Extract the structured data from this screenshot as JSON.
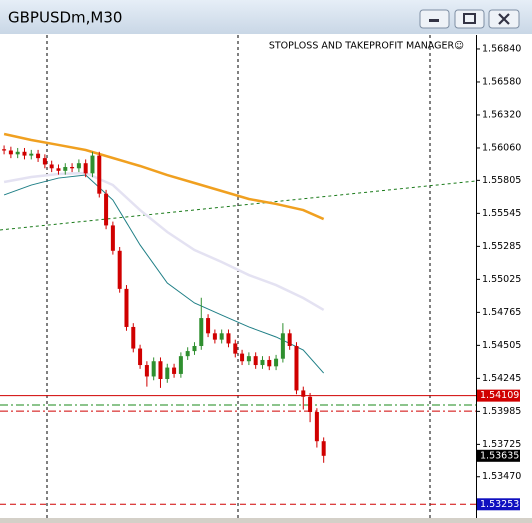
{
  "window": {
    "title": "GBPUSDm,M30"
  },
  "chart_data": {
    "type": "candlestick",
    "annotation": "STOPLOSS AND TAKEPROFIT MANAGER☺",
    "xlim": [
      -0.6,
      69.4
    ],
    "ylim": [
      1.53145,
      1.5695
    ],
    "yticks": [
      {
        "value": 1.5684,
        "label": "1.56840"
      },
      {
        "value": 1.5658,
        "label": "1.56580"
      },
      {
        "value": 1.5632,
        "label": "1.56320"
      },
      {
        "value": 1.5606,
        "label": "1.56060"
      },
      {
        "value": 1.55805,
        "label": "1.55805"
      },
      {
        "value": 1.55545,
        "label": "1.55545"
      },
      {
        "value": 1.55285,
        "label": "1.55285"
      },
      {
        "value": 1.55025,
        "label": "1.55025"
      },
      {
        "value": 1.54765,
        "label": "1.54765"
      },
      {
        "value": 1.54505,
        "label": "1.54505"
      },
      {
        "value": 1.54245,
        "label": "1.54245"
      },
      {
        "value": 1.53985,
        "label": "1.53985"
      },
      {
        "value": 1.53725,
        "label": "1.53725"
      },
      {
        "value": 1.5347,
        "label": "1.53470"
      }
    ],
    "up_color": "#2f8f2f",
    "down_color": "#d00000",
    "ohlc": {
      "open": [
        1.5605,
        1.5604,
        1.5601,
        1.5603,
        1.56,
        1.56015,
        1.5598,
        1.5593,
        1.559,
        1.5588,
        1.5591,
        1.559,
        1.5594,
        1.5586,
        1.56,
        1.557,
        1.5545,
        1.5525,
        1.5495,
        1.5465,
        1.5448,
        1.5435,
        1.5426,
        1.5438,
        1.5424,
        1.5433,
        1.5428,
        1.5442,
        1.5446,
        1.545,
        1.5472,
        1.546,
        1.5455,
        1.546,
        1.5452,
        1.5444,
        1.5438,
        1.5442,
        1.5435,
        1.5439,
        1.5434,
        1.544,
        1.546,
        1.545,
        1.5415,
        1.541,
        1.5398,
        1.5375
      ],
      "high": [
        1.5608,
        1.5607,
        1.5606,
        1.5606,
        1.56045,
        1.56045,
        1.5601,
        1.5596,
        1.5593,
        1.5594,
        1.5594,
        1.5597,
        1.5597,
        1.5603,
        1.5603,
        1.5573,
        1.5548,
        1.5528,
        1.5498,
        1.5468,
        1.5451,
        1.5438,
        1.5441,
        1.5441,
        1.5436,
        1.5436,
        1.5445,
        1.5449,
        1.5453,
        1.5488,
        1.5475,
        1.5463,
        1.5463,
        1.5463,
        1.5455,
        1.5447,
        1.5445,
        1.5445,
        1.5442,
        1.5442,
        1.5443,
        1.5468,
        1.5463,
        1.5453,
        1.5418,
        1.5413,
        1.5401,
        1.5378
      ],
      "low": [
        1.5601,
        1.5598,
        1.5598,
        1.5597,
        1.5597,
        1.5595,
        1.559,
        1.5587,
        1.5585,
        1.5585,
        1.5587,
        1.5587,
        1.5583,
        1.5583,
        1.5567,
        1.5542,
        1.5522,
        1.5492,
        1.5462,
        1.5445,
        1.5432,
        1.5418,
        1.5423,
        1.5417,
        1.5421,
        1.5425,
        1.5425,
        1.5439,
        1.5443,
        1.5447,
        1.5457,
        1.5452,
        1.5452,
        1.5449,
        1.5441,
        1.5435,
        1.5435,
        1.5432,
        1.5432,
        1.5431,
        1.5431,
        1.5437,
        1.5447,
        1.5412,
        1.54,
        1.539,
        1.537,
        1.5358
      ],
      "close": [
        1.5604,
        1.5601,
        1.5603,
        1.56,
        1.56015,
        1.5598,
        1.5593,
        1.559,
        1.5588,
        1.5591,
        1.559,
        1.5594,
        1.5586,
        1.56,
        1.557,
        1.5545,
        1.5525,
        1.5495,
        1.5465,
        1.5448,
        1.5435,
        1.5426,
        1.5438,
        1.5424,
        1.5433,
        1.5428,
        1.5442,
        1.5446,
        1.545,
        1.5472,
        1.546,
        1.5455,
        1.546,
        1.5452,
        1.5444,
        1.5438,
        1.5442,
        1.5435,
        1.5439,
        1.5434,
        1.544,
        1.546,
        1.545,
        1.5415,
        1.541,
        1.5398,
        1.5375,
        1.53635
      ]
    },
    "series": [
      {
        "color": "#f0a020",
        "width": 2.5,
        "x": [
          0,
          4,
          8,
          12,
          16,
          20,
          24,
          28,
          32,
          36,
          40,
          44,
          47
        ],
        "values": [
          1.5617,
          1.56123,
          1.56084,
          1.56044,
          1.55981,
          1.55918,
          1.55847,
          1.55784,
          1.55721,
          1.55658,
          1.55619,
          1.55571,
          1.555
        ]
      },
      {
        "color": "#e4e2f2",
        "width": 2.5,
        "x": [
          0,
          4,
          8,
          12,
          16,
          20,
          24,
          28,
          32,
          36,
          40,
          44,
          47
        ],
        "values": [
          1.55792,
          1.55831,
          1.55855,
          1.55863,
          1.55768,
          1.55571,
          1.55398,
          1.55256,
          1.55162,
          1.55059,
          1.5498,
          1.54878,
          1.54784
        ]
      },
      {
        "color": "#1f7f86",
        "width": 1,
        "x": [
          0,
          4,
          8,
          12,
          16,
          20,
          24,
          28,
          32,
          36,
          40,
          44,
          47
        ],
        "values": [
          1.5569,
          1.55768,
          1.55823,
          1.55847,
          1.5565,
          1.55296,
          1.54996,
          1.54839,
          1.54744,
          1.5465,
          1.54571,
          1.54468,
          1.54287
        ]
      }
    ],
    "trendline": {
      "color": "#1a7a1a",
      "x": [
        -0.6,
        69.4
      ],
      "values": [
        1.55414,
        1.558
      ]
    },
    "levels": [
      {
        "value": 1.54109,
        "label": "1.54109",
        "color": "#d00000",
        "style": "solid",
        "tag_color": "#d00000"
      },
      {
        "value": 1.54035,
        "color": "#1a8a1a",
        "style": "dashdot"
      },
      {
        "value": 1.53987,
        "color": "#d00000",
        "style": "dashdot"
      },
      {
        "value": 1.53635,
        "label": "1.53635",
        "style": "none",
        "tag_color": "#000000"
      },
      {
        "value": 1.53253,
        "label": "1.53253",
        "color": "#d00000",
        "style": "dashed",
        "tag_color": "#1010c0"
      }
    ]
  }
}
